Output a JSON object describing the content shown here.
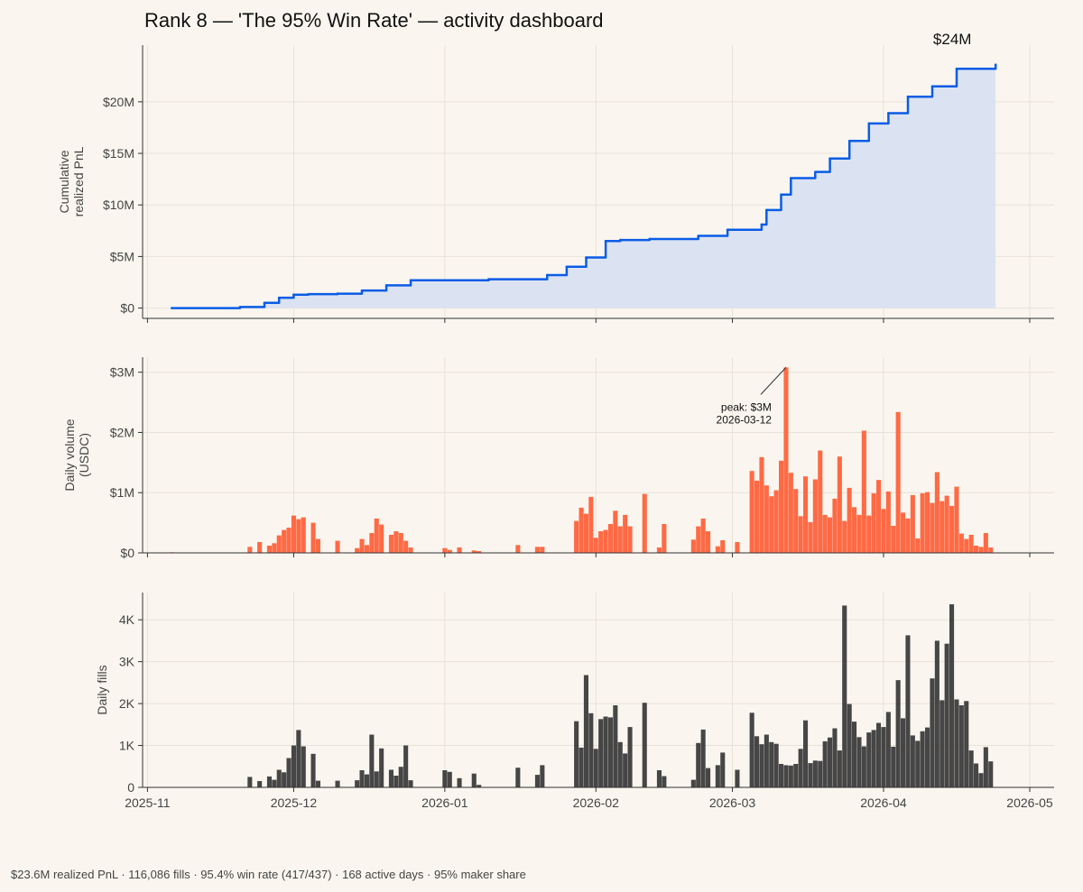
{
  "title": "Rank 8 — 'The 95% Win Rate' — activity dashboard",
  "footer": "$23.6M realized PnL · 116,086 fills · 95.4% win rate (417/437) · 168 active days · 95% maker share",
  "colors": {
    "background": "#faf6ef",
    "pnl_line": "#0b5ce6",
    "pnl_fill": "#dbe3f3",
    "volume_bars": "#ff6a45",
    "fills_bars": "#333333"
  },
  "chart_data": [
    {
      "type": "area",
      "ylabel": "Cumulative\nrealized PnL",
      "ylim": [
        -1000000,
        25500000
      ],
      "yticks": [
        0,
        5000000,
        10000000,
        15000000,
        20000000
      ],
      "ytick_labels": [
        "$0",
        "$5M",
        "$10M",
        "$15M",
        "$20M"
      ],
      "end_label": "$24M",
      "grid": true,
      "x": [
        "2025-11-06",
        "2025-11-20",
        "2025-11-25",
        "2025-11-28",
        "2025-12-01",
        "2025-12-04",
        "2025-12-10",
        "2025-12-15",
        "2025-12-20",
        "2025-12-25",
        "2026-01-10",
        "2026-01-22",
        "2026-01-26",
        "2026-01-30",
        "2026-02-03",
        "2026-02-06",
        "2026-02-12",
        "2026-02-22",
        "2026-02-28",
        "2026-03-07",
        "2026-03-08",
        "2026-03-11",
        "2026-03-13",
        "2026-03-18",
        "2026-03-21",
        "2026-03-25",
        "2026-03-29",
        "2026-04-02",
        "2026-04-06",
        "2026-04-11",
        "2026-04-16",
        "2026-04-24"
      ],
      "y": [
        0,
        100000,
        500000,
        1000000,
        1300000,
        1350000,
        1400000,
        1700000,
        2200000,
        2700000,
        2800000,
        3200000,
        4000000,
        4900000,
        6500000,
        6600000,
        6700000,
        7000000,
        7600000,
        8100000,
        9500000,
        11000000,
        12600000,
        13200000,
        14500000,
        16200000,
        17900000,
        18900000,
        20500000,
        21500000,
        23200000,
        23600000
      ]
    },
    {
      "type": "bar",
      "ylabel": "Daily volume\n(USDC)",
      "ylim": [
        0,
        3250000
      ],
      "yticks": [
        0,
        1000000,
        2000000,
        3000000
      ],
      "ytick_labels": [
        "$0",
        "$1M",
        "$2M",
        "$3M"
      ],
      "grid": true,
      "annotation": {
        "label": "peak: $3M",
        "sub_label": "2026-03-12",
        "x": "2026-03-12",
        "y": 3080000
      },
      "x": [
        "2025-11-06",
        "2025-11-22",
        "2025-11-24",
        "2025-11-26",
        "2025-11-27",
        "2025-11-28",
        "2025-11-29",
        "2025-11-30",
        "2025-12-01",
        "2025-12-02",
        "2025-12-03",
        "2025-12-05",
        "2025-12-06",
        "2025-12-10",
        "2025-12-14",
        "2025-12-15",
        "2025-12-16",
        "2025-12-17",
        "2025-12-18",
        "2025-12-19",
        "2025-12-21",
        "2025-12-22",
        "2025-12-23",
        "2025-12-24",
        "2025-12-25",
        "2026-01-01",
        "2026-01-02",
        "2026-01-04",
        "2026-01-07",
        "2026-01-08",
        "2026-01-16",
        "2026-01-20",
        "2026-01-21",
        "2026-01-28",
        "2026-01-29",
        "2026-01-30",
        "2026-01-31",
        "2026-02-01",
        "2026-02-02",
        "2026-02-03",
        "2026-02-04",
        "2026-02-05",
        "2026-02-06",
        "2026-02-07",
        "2026-02-08",
        "2026-02-11",
        "2026-02-14",
        "2026-02-15",
        "2026-02-21",
        "2026-02-22",
        "2026-02-23",
        "2026-02-24",
        "2026-02-26",
        "2026-02-27",
        "2026-03-02",
        "2026-03-05",
        "2026-03-06",
        "2026-03-07",
        "2026-03-08",
        "2026-03-09",
        "2026-03-10",
        "2026-03-11",
        "2026-03-12",
        "2026-03-13",
        "2026-03-14",
        "2026-03-15",
        "2026-03-16",
        "2026-03-17",
        "2026-03-18",
        "2026-03-19",
        "2026-03-20",
        "2026-03-21",
        "2026-03-22",
        "2026-03-23",
        "2026-03-24",
        "2026-03-25",
        "2026-03-26",
        "2026-03-27",
        "2026-03-28",
        "2026-03-29",
        "2026-03-30",
        "2026-03-31",
        "2026-04-01",
        "2026-04-02",
        "2026-04-03",
        "2026-04-04",
        "2026-04-05",
        "2026-04-06",
        "2026-04-07",
        "2026-04-08",
        "2026-04-09",
        "2026-04-10",
        "2026-04-11",
        "2026-04-12",
        "2026-04-13",
        "2026-04-14",
        "2026-04-15",
        "2026-04-16",
        "2026-04-17",
        "2026-04-18",
        "2026-04-19",
        "2026-04-20",
        "2026-04-21",
        "2026-04-22",
        "2026-04-23"
      ],
      "values": [
        10000,
        100000,
        180000,
        120000,
        160000,
        290000,
        380000,
        420000,
        620000,
        560000,
        590000,
        500000,
        230000,
        200000,
        80000,
        230000,
        130000,
        330000,
        570000,
        470000,
        300000,
        360000,
        330000,
        200000,
        90000,
        80000,
        50000,
        90000,
        40000,
        30000,
        130000,
        100000,
        100000,
        530000,
        750000,
        650000,
        930000,
        250000,
        360000,
        380000,
        480000,
        700000,
        440000,
        630000,
        440000,
        980000,
        90000,
        480000,
        220000,
        440000,
        570000,
        360000,
        110000,
        210000,
        180000,
        1360000,
        1200000,
        1590000,
        1120000,
        940000,
        1040000,
        1530000,
        3080000,
        1330000,
        1060000,
        610000,
        1270000,
        510000,
        1220000,
        1700000,
        630000,
        590000,
        900000,
        1600000,
        530000,
        1080000,
        760000,
        630000,
        2030000,
        620000,
        990000,
        1210000,
        730000,
        1020000,
        450000,
        2340000,
        670000,
        570000,
        960000,
        240000,
        990000,
        1010000,
        830000,
        1340000,
        860000,
        950000,
        780000,
        1100000,
        320000,
        230000,
        300000,
        120000,
        100000,
        330000,
        90000
      ]
    },
    {
      "type": "bar",
      "ylabel": "Daily fills",
      "ylim": [
        0,
        4650
      ],
      "yticks": [
        0,
        1000,
        2000,
        3000,
        4000
      ],
      "ytick_labels": [
        "0",
        "1K",
        "2K",
        "3K",
        "4K"
      ],
      "xticks": [
        "2025-11-01",
        "2025-12-01",
        "2026-01-01",
        "2026-02-01",
        "2026-03-01",
        "2026-04-01",
        "2026-05-01"
      ],
      "xtick_labels": [
        "2025-11",
        "2025-12",
        "2026-01",
        "2026-02",
        "2026-03",
        "2026-04",
        "2026-05"
      ],
      "grid": true,
      "x": [
        "2025-11-06",
        "2025-11-22",
        "2025-11-24",
        "2025-11-26",
        "2025-11-27",
        "2025-11-28",
        "2025-11-29",
        "2025-11-30",
        "2025-12-01",
        "2025-12-02",
        "2025-12-03",
        "2025-12-05",
        "2025-12-06",
        "2025-12-10",
        "2025-12-14",
        "2025-12-15",
        "2025-12-16",
        "2025-12-17",
        "2025-12-18",
        "2025-12-19",
        "2025-12-21",
        "2025-12-22",
        "2025-12-23",
        "2025-12-24",
        "2025-12-25",
        "2026-01-01",
        "2026-01-02",
        "2026-01-04",
        "2026-01-07",
        "2026-01-08",
        "2026-01-16",
        "2026-01-20",
        "2026-01-21",
        "2026-01-28",
        "2026-01-29",
        "2026-01-30",
        "2026-01-31",
        "2026-02-01",
        "2026-02-02",
        "2026-02-03",
        "2026-02-04",
        "2026-02-05",
        "2026-02-06",
        "2026-02-07",
        "2026-02-08",
        "2026-02-11",
        "2026-02-14",
        "2026-02-15",
        "2026-02-21",
        "2026-02-22",
        "2026-02-23",
        "2026-02-24",
        "2026-02-26",
        "2026-02-27",
        "2026-03-02",
        "2026-03-05",
        "2026-03-06",
        "2026-03-07",
        "2026-03-08",
        "2026-03-09",
        "2026-03-10",
        "2026-03-11",
        "2026-03-12",
        "2026-03-13",
        "2026-03-14",
        "2026-03-15",
        "2026-03-16",
        "2026-03-17",
        "2026-03-18",
        "2026-03-19",
        "2026-03-20",
        "2026-03-21",
        "2026-03-22",
        "2026-03-23",
        "2026-03-24",
        "2026-03-25",
        "2026-03-26",
        "2026-03-27",
        "2026-03-28",
        "2026-03-29",
        "2026-03-30",
        "2026-03-31",
        "2026-04-01",
        "2026-04-02",
        "2026-04-03",
        "2026-04-04",
        "2026-04-05",
        "2026-04-06",
        "2026-04-07",
        "2026-04-08",
        "2026-04-09",
        "2026-04-10",
        "2026-04-11",
        "2026-04-12",
        "2026-04-13",
        "2026-04-14",
        "2026-04-15",
        "2026-04-16",
        "2026-04-17",
        "2026-04-18",
        "2026-04-19",
        "2026-04-20",
        "2026-04-21",
        "2026-04-22",
        "2026-04-23"
      ],
      "values": [
        0,
        250,
        150,
        260,
        180,
        420,
        360,
        700,
        1000,
        1370,
        980,
        800,
        160,
        160,
        170,
        410,
        310,
        1260,
        380,
        930,
        420,
        280,
        490,
        1000,
        170,
        410,
        370,
        220,
        330,
        60,
        470,
        300,
        530,
        1580,
        950,
        2680,
        1770,
        920,
        1630,
        1690,
        1670,
        1960,
        1080,
        810,
        1440,
        2020,
        410,
        270,
        180,
        1060,
        1380,
        460,
        530,
        830,
        420,
        1780,
        1220,
        1030,
        1260,
        1080,
        1040,
        560,
        530,
        520,
        560,
        920,
        1600,
        580,
        640,
        630,
        1100,
        1190,
        1410,
        880,
        4340,
        1990,
        1570,
        1200,
        980,
        1310,
        1370,
        1540,
        1440,
        1800,
        970,
        2560,
        1650,
        3630,
        1240,
        1110,
        1340,
        1430,
        2600,
        3500,
        2080,
        3430,
        4370,
        2100,
        1960,
        2060,
        880,
        570,
        340,
        960,
        620
      ]
    }
  ]
}
